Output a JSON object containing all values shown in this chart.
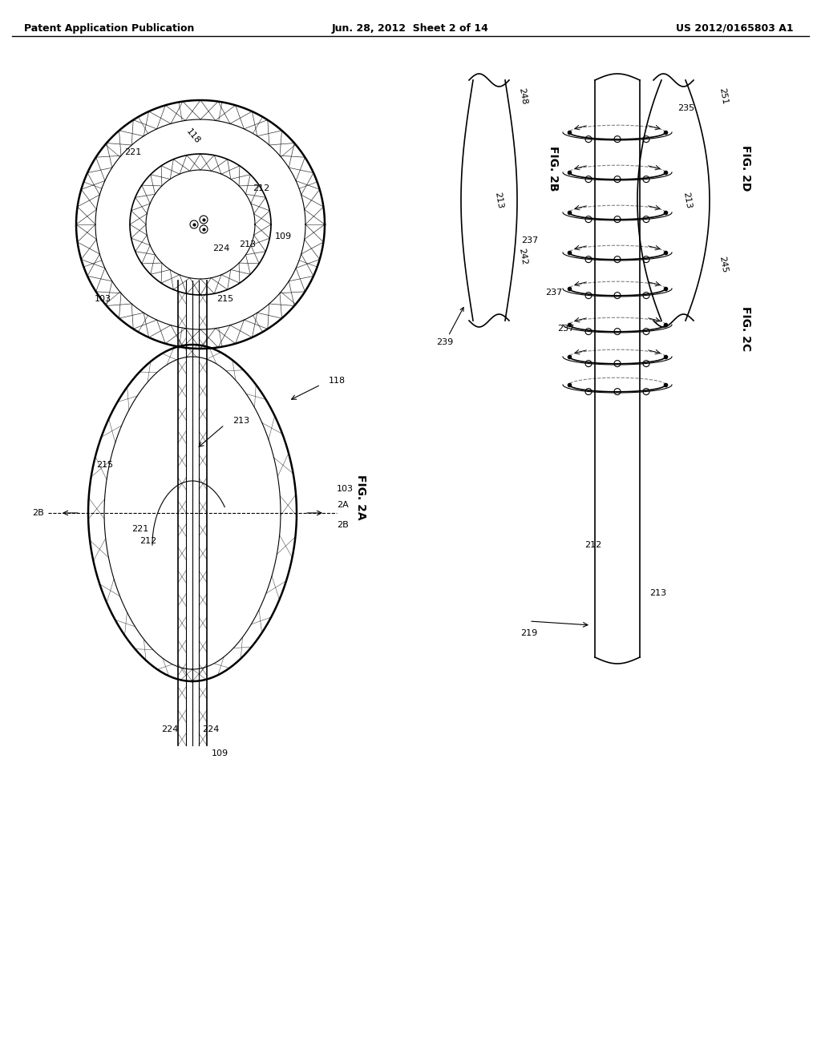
{
  "bg_color": "#ffffff",
  "line_color": "#000000",
  "header_left": "Patent Application Publication",
  "header_mid": "Jun. 28, 2012  Sheet 2 of 14",
  "header_right": "US 2012/0165803 A1",
  "fig_labels": {
    "fig2A": "FIG. 2A",
    "fig2B": "FIG. 2B",
    "fig2C": "FIG. 2C",
    "fig2D": "FIG. 2D"
  },
  "ref_numbers": {
    "103": "103",
    "109": "109",
    "118": "118",
    "212": "212",
    "213": "213",
    "215": "215",
    "221": "221",
    "224": "224",
    "235": "235",
    "237": "237",
    "239": "239",
    "242": "242",
    "245": "245",
    "248": "248",
    "251": "251",
    "219": "219"
  }
}
